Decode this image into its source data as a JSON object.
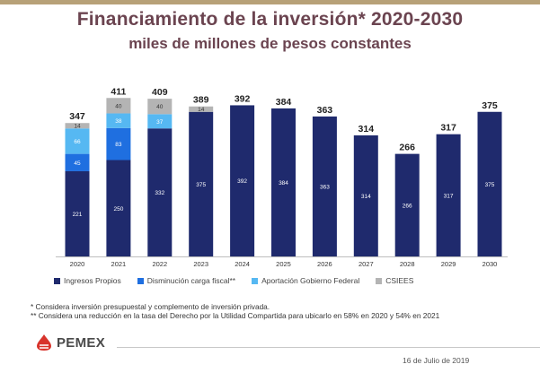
{
  "chart_data": {
    "type": "bar",
    "stacked": true,
    "title": "Financiamiento de la inversión* 2020-2030",
    "subtitle": "miles de millones de pesos constantes",
    "categories": [
      "2020",
      "2021",
      "2022",
      "2023",
      "2024",
      "2025",
      "2026",
      "2027",
      "2028",
      "2029",
      "2030"
    ],
    "series": [
      {
        "name": "Ingresos Propios",
        "color": "#1f2a6d",
        "values": [
          221,
          250,
          332,
          375,
          392,
          384,
          363,
          314,
          266,
          317,
          375
        ]
      },
      {
        "name": "Disminución carga fiscal**",
        "color": "#1f6fe0",
        "values": [
          45,
          83,
          0,
          0,
          0,
          0,
          0,
          0,
          0,
          0,
          0
        ]
      },
      {
        "name": "Aportación Gobierno Federal",
        "color": "#56b8f2",
        "values": [
          66,
          38,
          37,
          0,
          0,
          0,
          0,
          0,
          0,
          0,
          0
        ]
      },
      {
        "name": "CSIEES",
        "color": "#b4b4b4",
        "values": [
          14,
          40,
          40,
          14,
          0,
          0,
          0,
          0,
          0,
          0,
          0
        ]
      }
    ],
    "totals": [
      347,
      411,
      409,
      389,
      392,
      384,
      363,
      314,
      266,
      317,
      375
    ],
    "ylim": [
      0,
      420
    ],
    "grid": false,
    "legend_position": "bottom"
  },
  "notes": {
    "note1": "* Considera inversión presupuestal y complemento de inversión privada.",
    "note2": "** Considera una reducción en la tasa del Derecho por la Utilidad Compartida para ubicarlo en 58% en 2020 y 54% en 2021"
  },
  "footer": {
    "logo_text": "PEMEX",
    "date": "16 de Julio de 2019"
  }
}
